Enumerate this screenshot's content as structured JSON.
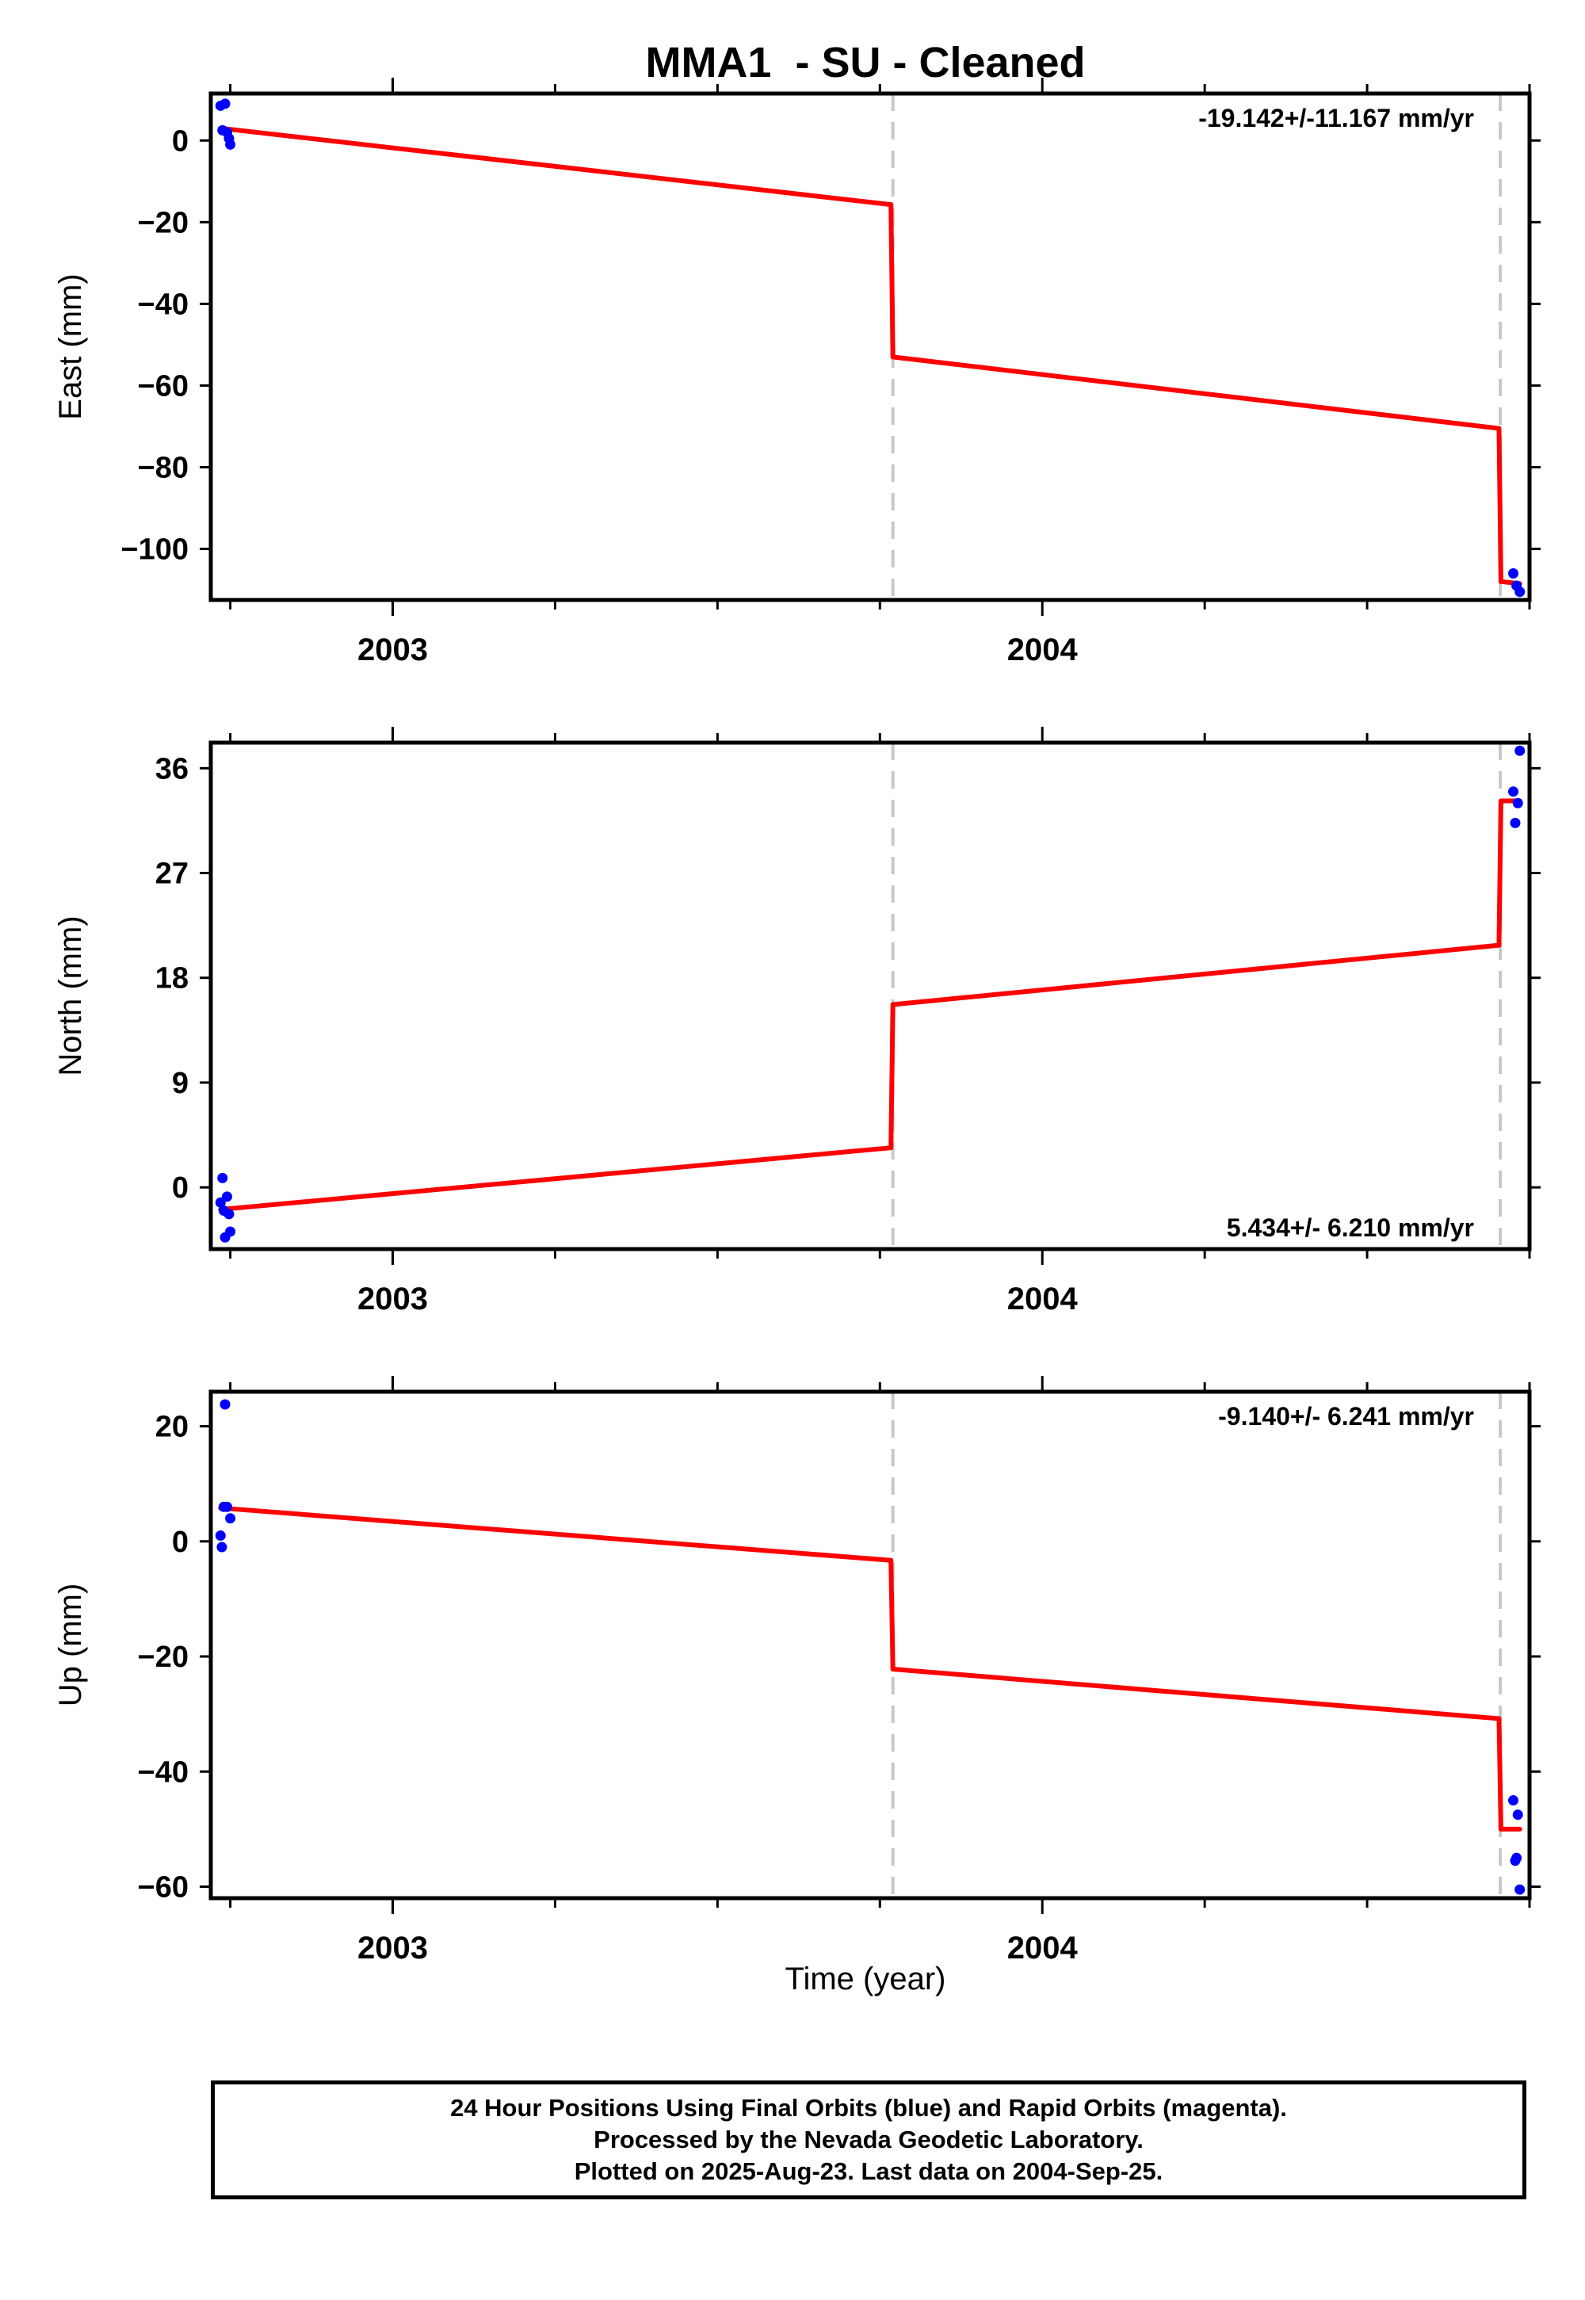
{
  "title": "MMA1  - SU - Cleaned",
  "xlabel": "Time (year)",
  "colors": {
    "data": "#0000ff",
    "model": "#ff0000",
    "break": "#c8c8c8",
    "axis": "#000000"
  },
  "footer": {
    "line1": "24 Hour Positions Using Final Orbits (blue) and Rapid Orbits (magenta).",
    "line2": "Processed by the Nevada Geodetic Laboratory.",
    "line3": "Plotted on 2025-Aug-23. Last data on 2004-Sep-25."
  },
  "chart_data": [
    {
      "type": "scatter",
      "name": "east",
      "ylabel": "East (mm)",
      "rate_text": "-19.142+/-11.167 mm/yr",
      "rate_position": "top-right",
      "xlim": [
        2002.72,
        2004.75
      ],
      "ylim": [
        -112.5,
        11.5
      ],
      "yticks": [
        0,
        -20,
        -40,
        -60,
        -80,
        -100
      ],
      "xticks_major": [
        2003,
        2004
      ],
      "xticks_minor": [
        2002.75,
        2003.25,
        2003.5,
        2003.75,
        2004.25,
        2004.5,
        2004.75
      ],
      "break_lines": [
        2003.77,
        2004.705
      ],
      "points": [
        {
          "x": 2002.735,
          "y": 8.5
        },
        {
          "x": 2002.742,
          "y": 9.0
        },
        {
          "x": 2002.738,
          "y": 2.5
        },
        {
          "x": 2002.745,
          "y": 2.0
        },
        {
          "x": 2002.748,
          "y": 0.5
        },
        {
          "x": 2002.75,
          "y": -1.0
        },
        {
          "x": 2004.725,
          "y": -106.0
        },
        {
          "x": 2004.73,
          "y": -109.0
        },
        {
          "x": 2004.735,
          "y": -110.5
        }
      ],
      "model_segments": [
        [
          [
            2002.735,
            3.0
          ],
          [
            2003.767,
            -15.7
          ]
        ],
        [
          [
            2003.767,
            -15.7
          ],
          [
            2003.77,
            -53.0
          ]
        ],
        [
          [
            2003.77,
            -53.0
          ],
          [
            2004.703,
            -70.5
          ]
        ],
        [
          [
            2004.703,
            -70.5
          ],
          [
            2004.706,
            -108.0
          ]
        ],
        [
          [
            2004.706,
            -108.0
          ],
          [
            2004.735,
            -108.5
          ]
        ]
      ]
    },
    {
      "type": "scatter",
      "name": "north",
      "ylabel": "North (mm)",
      "rate_text": "5.434+/- 6.210 mm/yr",
      "rate_position": "bottom-right",
      "xlim": [
        2002.72,
        2004.75
      ],
      "ylim": [
        -5.3,
        38.2
      ],
      "yticks": [
        36,
        27,
        18,
        9,
        0
      ],
      "xticks_major": [
        2003,
        2004
      ],
      "xticks_minor": [
        2002.75,
        2003.25,
        2003.5,
        2003.75,
        2004.25,
        2004.5,
        2004.75
      ],
      "break_lines": [
        2003.77,
        2004.705
      ],
      "points": [
        {
          "x": 2002.735,
          "y": -1.3
        },
        {
          "x": 2002.738,
          "y": 0.8
        },
        {
          "x": 2002.74,
          "y": -2.0
        },
        {
          "x": 2002.742,
          "y": -4.3
        },
        {
          "x": 2002.745,
          "y": -0.8
        },
        {
          "x": 2002.748,
          "y": -2.3
        },
        {
          "x": 2002.75,
          "y": -3.8
        },
        {
          "x": 2004.725,
          "y": 34.0
        },
        {
          "x": 2004.728,
          "y": 31.3
        },
        {
          "x": 2004.732,
          "y": 33.0
        },
        {
          "x": 2004.735,
          "y": 37.5
        }
      ],
      "model_segments": [
        [
          [
            2002.735,
            -1.9
          ],
          [
            2003.767,
            3.4
          ]
        ],
        [
          [
            2003.767,
            3.4
          ],
          [
            2003.77,
            15.7
          ]
        ],
        [
          [
            2003.77,
            15.7
          ],
          [
            2004.703,
            20.8
          ]
        ],
        [
          [
            2004.703,
            20.8
          ],
          [
            2004.706,
            33.2
          ]
        ],
        [
          [
            2004.706,
            33.2
          ],
          [
            2004.735,
            33.2
          ]
        ]
      ]
    },
    {
      "type": "scatter",
      "name": "up",
      "ylabel": "Up (mm)",
      "rate_text": "-9.140+/- 6.241 mm/yr",
      "rate_position": "top-right",
      "xlim": [
        2002.72,
        2004.75
      ],
      "ylim": [
        -62.0,
        26.0
      ],
      "yticks": [
        20,
        0,
        -20,
        -40,
        -60
      ],
      "xticks_major": [
        2003,
        2004
      ],
      "xticks_minor": [
        2002.75,
        2003.25,
        2003.5,
        2003.75,
        2004.25,
        2004.5,
        2004.75
      ],
      "break_lines": [
        2003.77,
        2004.705
      ],
      "points": [
        {
          "x": 2002.735,
          "y": 1.0
        },
        {
          "x": 2002.737,
          "y": -1.0
        },
        {
          "x": 2002.74,
          "y": 6.0
        },
        {
          "x": 2002.742,
          "y": 23.8
        },
        {
          "x": 2002.745,
          "y": 6.0
        },
        {
          "x": 2002.75,
          "y": 4.0
        },
        {
          "x": 2004.725,
          "y": -45.0
        },
        {
          "x": 2004.728,
          "y": -55.5
        },
        {
          "x": 2004.73,
          "y": -55.0
        },
        {
          "x": 2004.732,
          "y": -47.5
        },
        {
          "x": 2004.735,
          "y": -60.5
        }
      ],
      "model_segments": [
        [
          [
            2002.735,
            5.8
          ],
          [
            2003.767,
            -3.3
          ]
        ],
        [
          [
            2003.767,
            -3.3
          ],
          [
            2003.77,
            -22.2
          ]
        ],
        [
          [
            2003.77,
            -22.2
          ],
          [
            2004.703,
            -30.8
          ]
        ],
        [
          [
            2004.703,
            -30.8
          ],
          [
            2004.706,
            -50.0
          ]
        ],
        [
          [
            2004.706,
            -50.0
          ],
          [
            2004.735,
            -50.0
          ]
        ]
      ]
    }
  ]
}
